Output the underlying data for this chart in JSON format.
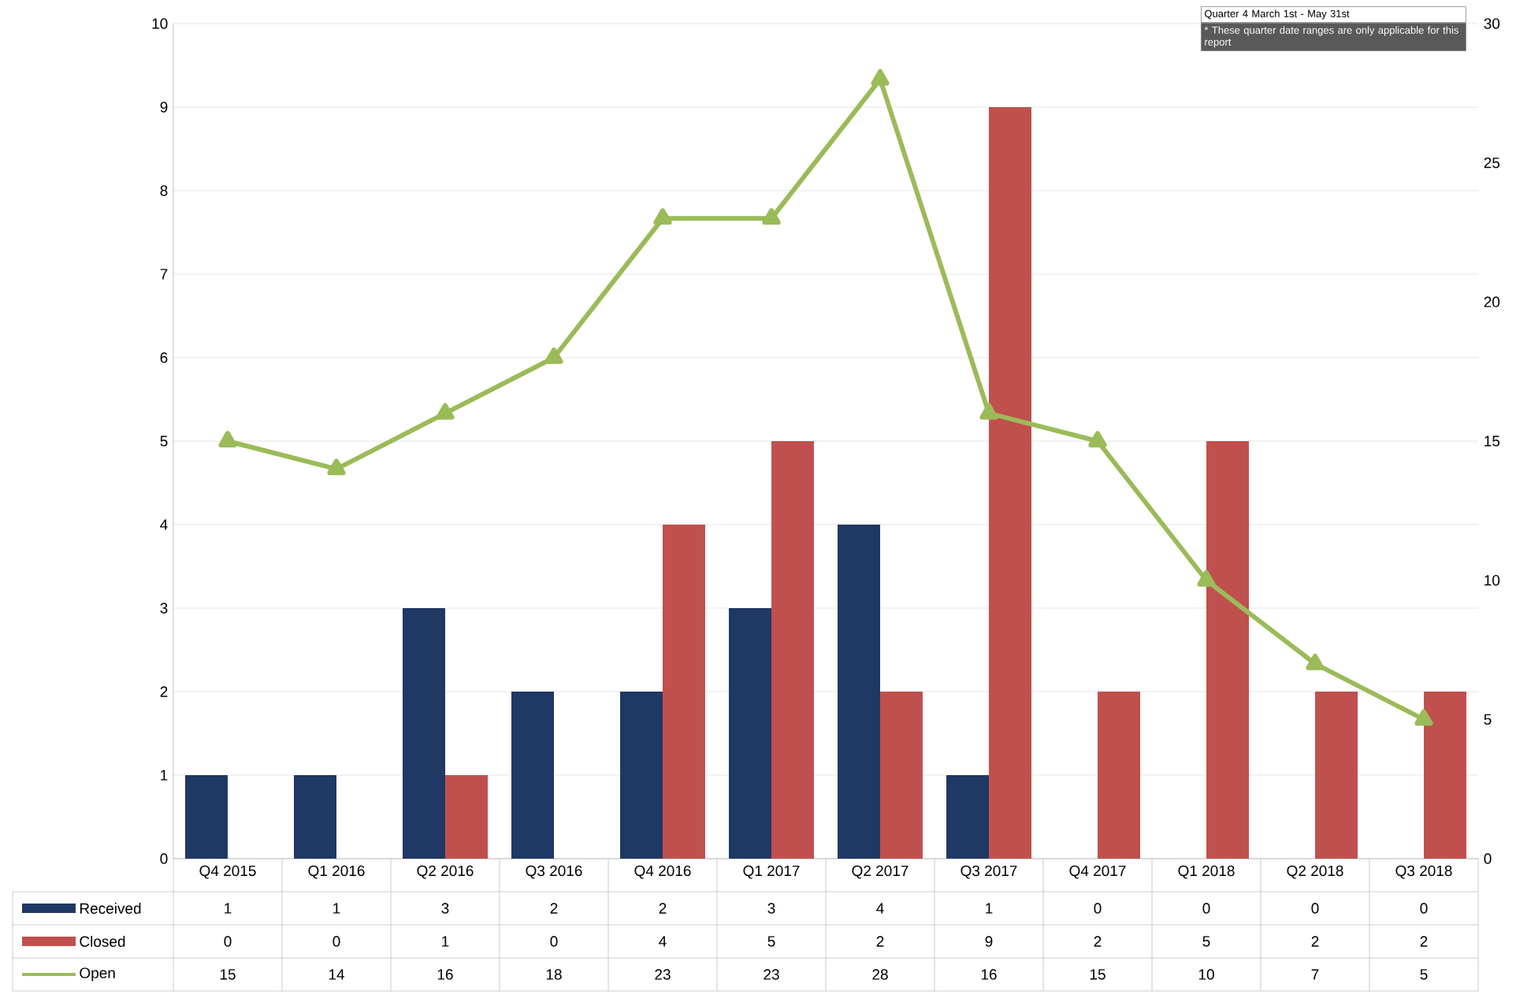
{
  "chart_data": {
    "type": "bar",
    "categories": [
      "Q4 2015",
      "Q1 2016",
      "Q2 2016",
      "Q3 2016",
      "Q4 2016",
      "Q1 2017",
      "Q2 2017",
      "Q3 2017",
      "Q4 2017",
      "Q1 2018",
      "Q2 2018",
      "Q3 2018"
    ],
    "series": [
      {
        "name": "Received",
        "color": "#1f3864",
        "values": [
          1,
          1,
          3,
          2,
          2,
          3,
          4,
          1,
          0,
          0,
          0,
          0
        ]
      },
      {
        "name": "Closed",
        "color": "#c0504d",
        "values": [
          0,
          0,
          1,
          0,
          4,
          5,
          2,
          9,
          2,
          5,
          2,
          2
        ]
      },
      {
        "name": "Open",
        "type": "line",
        "axis": "y2",
        "color": "#9bbb59",
        "values": [
          15,
          14,
          16,
          18,
          23,
          23,
          28,
          16,
          15,
          10,
          7,
          5
        ]
      }
    ],
    "ylim": [
      0,
      10
    ],
    "yticks": [
      0,
      1,
      2,
      3,
      4,
      5,
      6,
      7,
      8,
      9,
      10
    ],
    "y2lim": [
      0,
      30
    ],
    "y2ticks": [
      0,
      5,
      10,
      15,
      20,
      25,
      30
    ],
    "grid": "y",
    "legend": "bottom left",
    "marker": "triangle",
    "data_labels": true,
    "annotations": [
      "Quarter 4   March 1st - May 31st",
      "* These quarter date ranges are only applicable for this report"
    ]
  }
}
